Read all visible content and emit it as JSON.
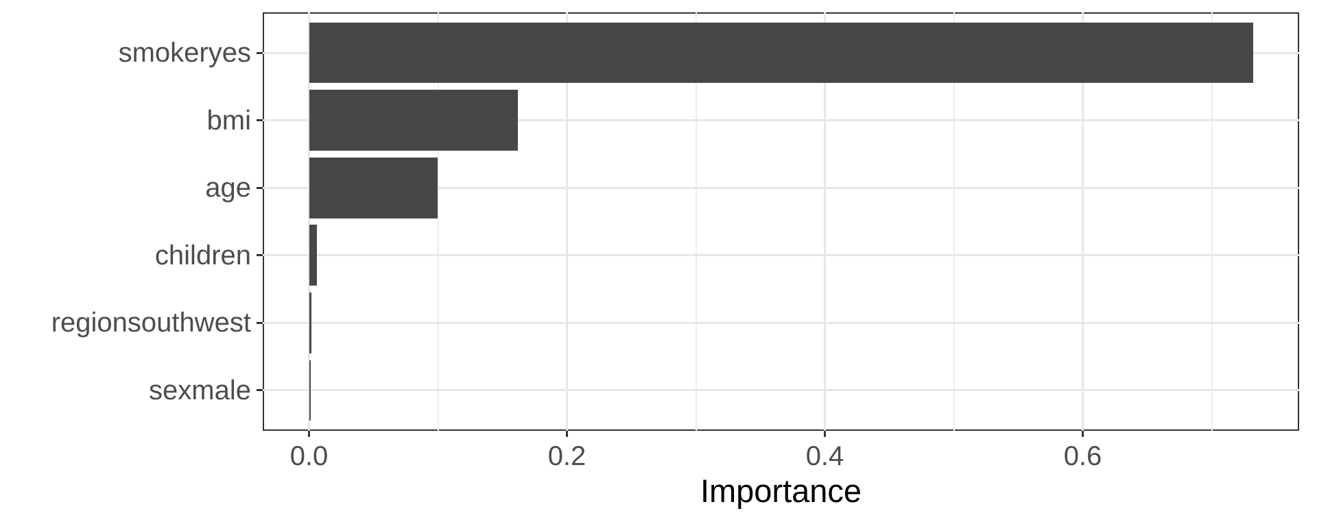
{
  "chart_data": {
    "type": "bar",
    "orientation": "horizontal",
    "title": "",
    "xlabel": "Importance",
    "ylabel": "",
    "categories": [
      "smokeryes",
      "bmi",
      "age",
      "children",
      "regionsouthwest",
      "sexmale"
    ],
    "values": [
      0.732,
      0.162,
      0.0995,
      0.006,
      0.0016,
      0.001
    ],
    "x_major_ticks": [
      0.0,
      0.2,
      0.4,
      0.6
    ],
    "x_tick_labels": [
      "0.0",
      "0.2",
      "0.4",
      "0.6"
    ],
    "x_minor_ticks": [
      0.1,
      0.3,
      0.5,
      0.7
    ],
    "xlim": [
      -0.036,
      0.768
    ],
    "grid": true,
    "legend_position": "none",
    "colors": {
      "bar": "#474747",
      "grid_major": "#e7e7e7",
      "grid_minor": "#ededed",
      "axis_text": "#4d4d4d",
      "axis_title": "#000000",
      "panel_border": "#333333",
      "tick_mark": "#333333",
      "background": "#ffffff"
    }
  }
}
